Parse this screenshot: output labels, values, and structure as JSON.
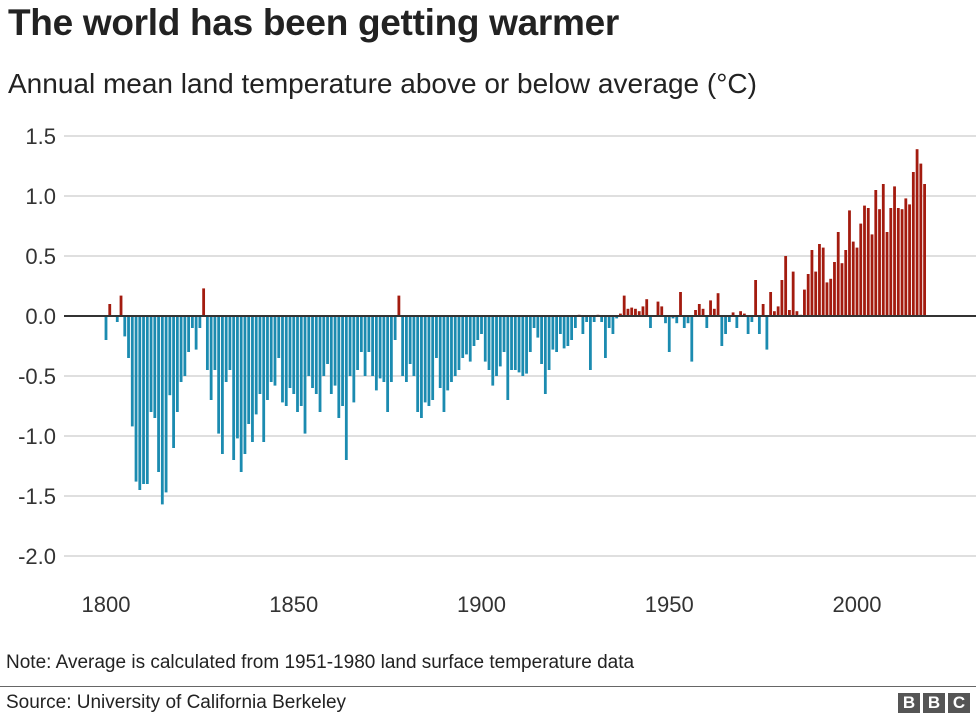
{
  "title": "The world has been getting warmer",
  "subtitle": "Annual mean land temperature above or below average (°C)",
  "note": "Note: Average is calculated from 1951-1980 land surface temperature data",
  "source": "Source: University of California Berkeley",
  "logo": [
    "B",
    "B",
    "C"
  ],
  "colors": {
    "positive": "#a31b0f",
    "negative": "#1b8bb0",
    "grid": "#cccccc",
    "zero_line": "#333333"
  },
  "chart_data": {
    "type": "bar",
    "title": "The world has been getting warmer",
    "subtitle": "Annual mean land temperature above or below average (°C)",
    "xlabel": "",
    "ylabel": "",
    "x_start": 1800,
    "xlim": [
      1800,
      2018
    ],
    "ylim": [
      -2.0,
      1.5
    ],
    "y_ticks": [
      "1.5",
      "1.0",
      "0.5",
      "0.0",
      "-0.5",
      "-1.0",
      "-1.5",
      "-2.0"
    ],
    "y_tick_values": [
      1.5,
      1.0,
      0.5,
      0.0,
      -0.5,
      -1.0,
      -1.5,
      -2.0
    ],
    "x_ticks": [
      "1800",
      "1850",
      "1900",
      "1950",
      "2000"
    ],
    "x_tick_values": [
      1800,
      1850,
      1900,
      1950,
      2000
    ],
    "grid": true,
    "values": [
      -0.2,
      0.1,
      0.0,
      -0.05,
      0.17,
      -0.17,
      -0.35,
      -0.92,
      -1.38,
      -1.45,
      -1.4,
      -1.4,
      -0.8,
      -0.85,
      -1.3,
      -1.57,
      -1.47,
      -0.66,
      -1.1,
      -0.8,
      -0.55,
      -0.5,
      -0.3,
      -0.1,
      -0.28,
      -0.1,
      0.23,
      -0.45,
      -0.7,
      -0.45,
      -0.98,
      -1.15,
      -0.55,
      -0.45,
      -1.2,
      -1.02,
      -1.3,
      -1.15,
      -0.9,
      -1.05,
      -0.82,
      -0.65,
      -1.05,
      -0.7,
      -0.55,
      -0.58,
      -0.35,
      -0.72,
      -0.75,
      -0.6,
      -0.65,
      -0.8,
      -0.75,
      -0.98,
      -0.5,
      -0.6,
      -0.65,
      -0.8,
      -0.5,
      -0.4,
      -0.65,
      -0.58,
      -0.85,
      -0.75,
      -1.2,
      -0.5,
      -0.72,
      -0.45,
      -0.3,
      -0.5,
      -0.3,
      -0.5,
      -0.62,
      -0.52,
      -0.55,
      -0.8,
      -0.55,
      -0.2,
      0.17,
      -0.5,
      -0.55,
      -0.4,
      -0.5,
      -0.8,
      -0.85,
      -0.72,
      -0.75,
      -0.7,
      -0.35,
      -0.6,
      -0.8,
      -0.62,
      -0.55,
      -0.5,
      -0.45,
      -0.35,
      -0.32,
      -0.38,
      -0.25,
      -0.2,
      -0.15,
      -0.38,
      -0.45,
      -0.58,
      -0.5,
      -0.42,
      -0.3,
      -0.7,
      -0.45,
      -0.45,
      -0.47,
      -0.5,
      -0.48,
      -0.3,
      -0.1,
      -0.18,
      -0.4,
      -0.65,
      -0.45,
      -0.28,
      -0.3,
      -0.15,
      -0.27,
      -0.25,
      -0.2,
      -0.1,
      0.01,
      -0.15,
      -0.05,
      -0.45,
      -0.05,
      0.01,
      -0.05,
      -0.35,
      -0.1,
      -0.15,
      -0.02,
      0.02,
      0.17,
      0.06,
      0.07,
      0.06,
      0.04,
      0.08,
      0.14,
      -0.1,
      0.0,
      0.12,
      0.08,
      -0.06,
      -0.3,
      -0.02,
      -0.06,
      0.2,
      -0.1,
      -0.06,
      -0.38,
      0.05,
      0.1,
      0.06,
      -0.1,
      0.13,
      0.06,
      0.19,
      -0.25,
      -0.15,
      -0.05,
      0.03,
      -0.1,
      0.04,
      0.02,
      -0.15,
      -0.05,
      0.3,
      -0.15,
      0.1,
      -0.28,
      0.2,
      0.04,
      0.08,
      0.3,
      0.5,
      0.05,
      0.37,
      0.04,
      0.01,
      0.22,
      0.35,
      0.55,
      0.37,
      0.6,
      0.57,
      0.28,
      0.31,
      0.45,
      0.7,
      0.44,
      0.55,
      0.88,
      0.62,
      0.57,
      0.77,
      0.92,
      0.9,
      0.68,
      1.05,
      0.89,
      1.1,
      0.7,
      0.9,
      1.08,
      0.9,
      0.89,
      0.98,
      0.93,
      1.2,
      1.39,
      1.27,
      1.1
    ]
  }
}
